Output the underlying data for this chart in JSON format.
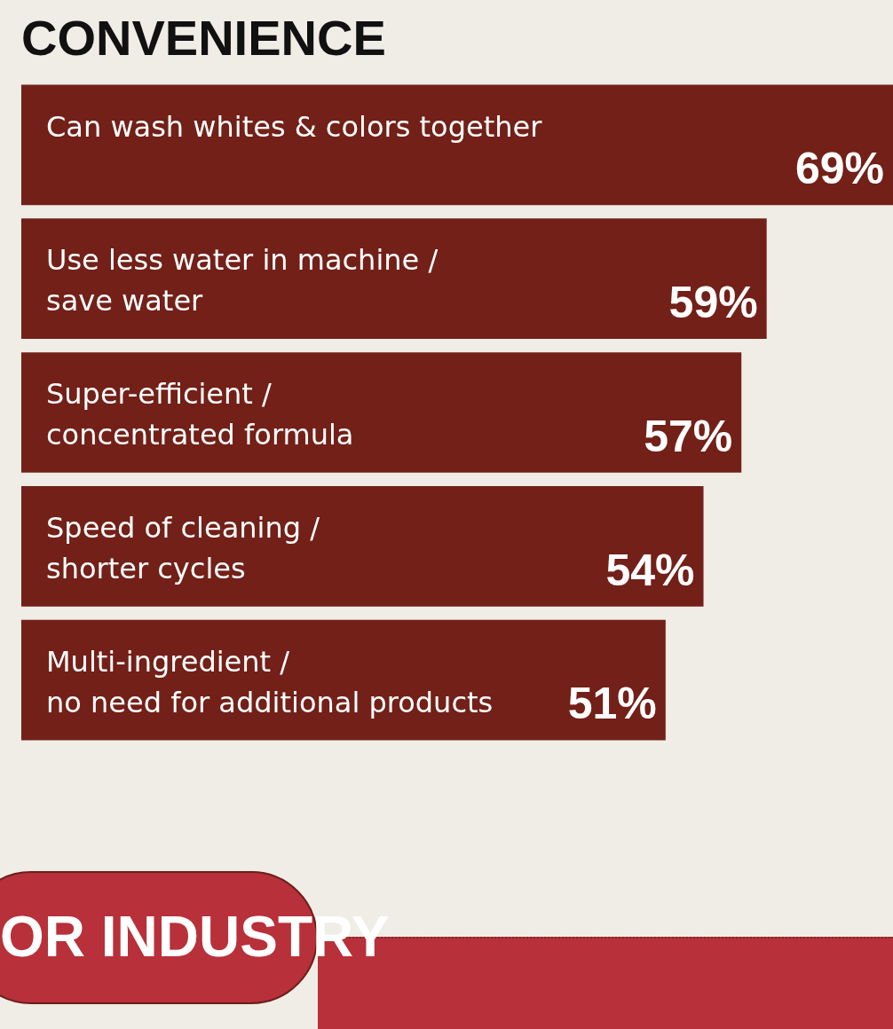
{
  "chart_data": {
    "type": "bar",
    "orientation": "horizontal",
    "title": "CONVENIENCE",
    "categories": [
      "Can wash whites & colors together",
      "Use less water in machine /\nsave water",
      "Super-efficient /\nconcentrated formula",
      "Speed of cleaning /\nshorter cycles",
      "Multi-ingredient /\nno need for additional products"
    ],
    "values": [
      69,
      59,
      57,
      54,
      51
    ],
    "value_labels": [
      "69%",
      "59%",
      "57%",
      "54%",
      "51%"
    ],
    "color": "#722018",
    "annotations": [
      "OR INDUSTRY"
    ]
  }
}
